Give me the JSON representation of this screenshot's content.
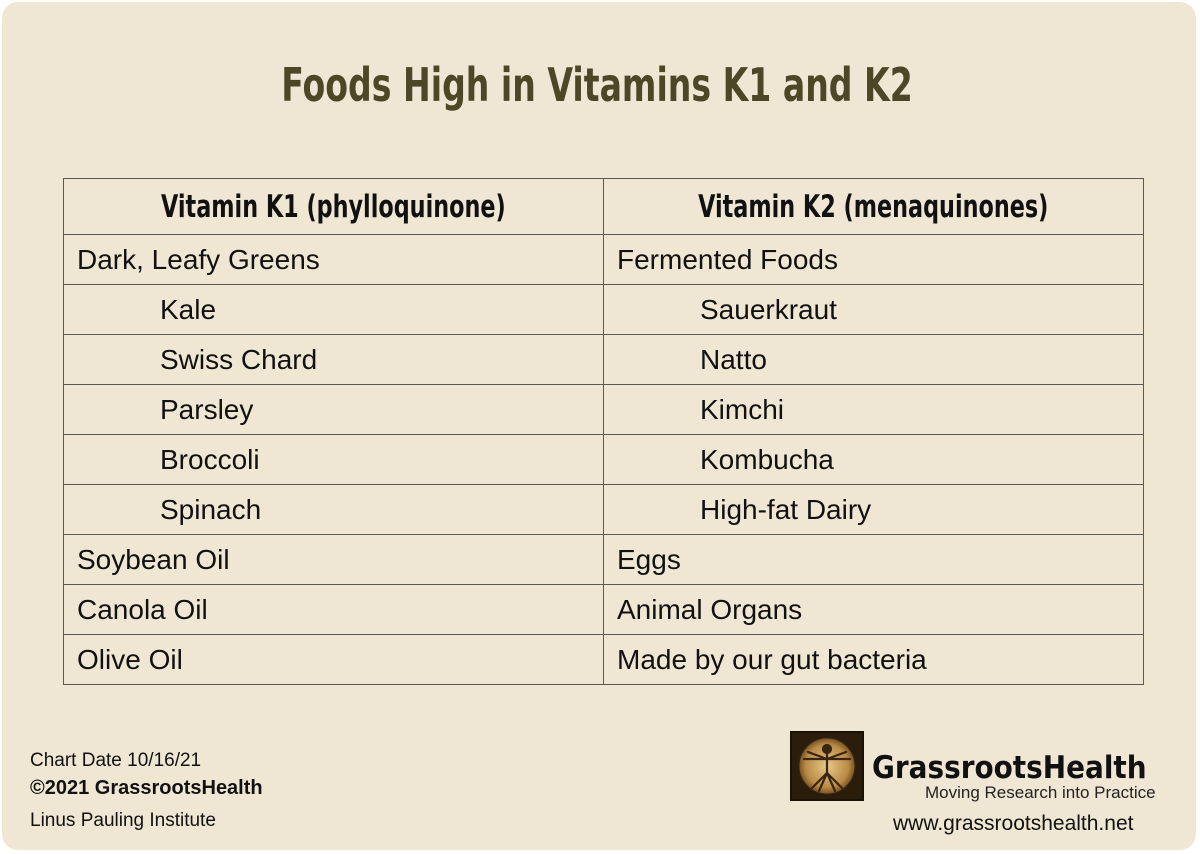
{
  "title": "Foods High in Vitamins K1 and K2",
  "table": {
    "headers": [
      "Vitamin K1 (phylloquinone)",
      "Vitamin K2 (menaquinones)"
    ],
    "rows": [
      {
        "k1": "Dark, Leafy Greens",
        "k2": "Fermented Foods",
        "indent": false
      },
      {
        "k1": "Kale",
        "k2": "Sauerkraut",
        "indent": true
      },
      {
        "k1": "Swiss Chard",
        "k2": "Natto",
        "indent": true
      },
      {
        "k1": "Parsley",
        "k2": "Kimchi",
        "indent": true
      },
      {
        "k1": "Broccoli",
        "k2": "Kombucha",
        "indent": true
      },
      {
        "k1": "Spinach",
        "k2": "High-fat Dairy",
        "indent": true
      },
      {
        "k1": "Soybean Oil",
        "k2": "Eggs",
        "indent": false
      },
      {
        "k1": "Canola Oil",
        "k2": "Animal Organs",
        "indent": false
      },
      {
        "k1": "Olive Oil",
        "k2": "Made by our gut bacteria",
        "indent": false
      }
    ]
  },
  "footer": {
    "chart_date": "Chart Date 10/16/21",
    "copyright": "©2021 GrassrootsHealth",
    "source": "Linus Pauling Institute"
  },
  "brand": {
    "name": "GrassrootsHealth",
    "tagline": "Moving Research into Practice",
    "url": "www.grassrootshealth.net",
    "logo_icon": "vitruvian-man-icon"
  },
  "colors": {
    "background": "#f0e6d4",
    "title": "#4d4727",
    "border": "#5a5a5a"
  }
}
